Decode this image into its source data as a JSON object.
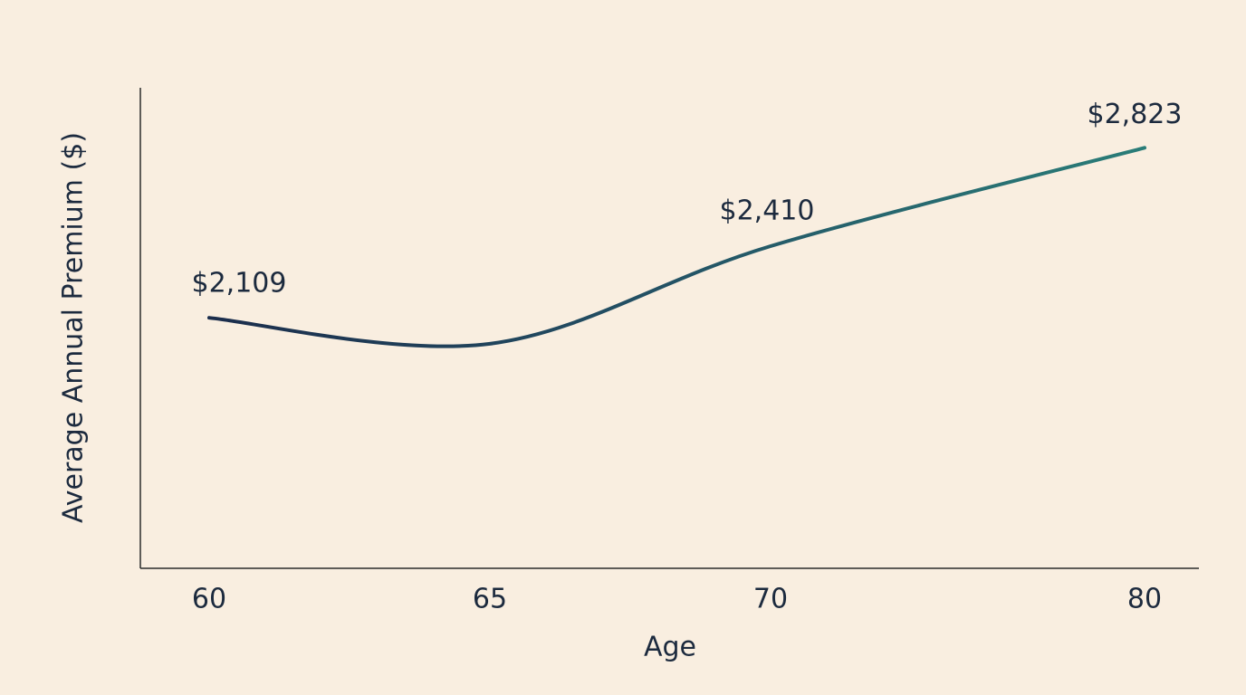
{
  "chart_data": {
    "type": "line",
    "x_label": "Age",
    "y_label": "Average Annual Premium ($)",
    "categories": [
      "60",
      "65",
      "70",
      "80"
    ],
    "series": [
      {
        "name": "Average Annual Premium",
        "color": "#22606a",
        "values": [
          2109,
          2000,
          2410,
          2823
        ],
        "value_labels": [
          "$2,109",
          null,
          "$2,410",
          "$2,823"
        ]
      }
    ],
    "ylim": [
      1057,
      3075
    ],
    "grid": false
  }
}
